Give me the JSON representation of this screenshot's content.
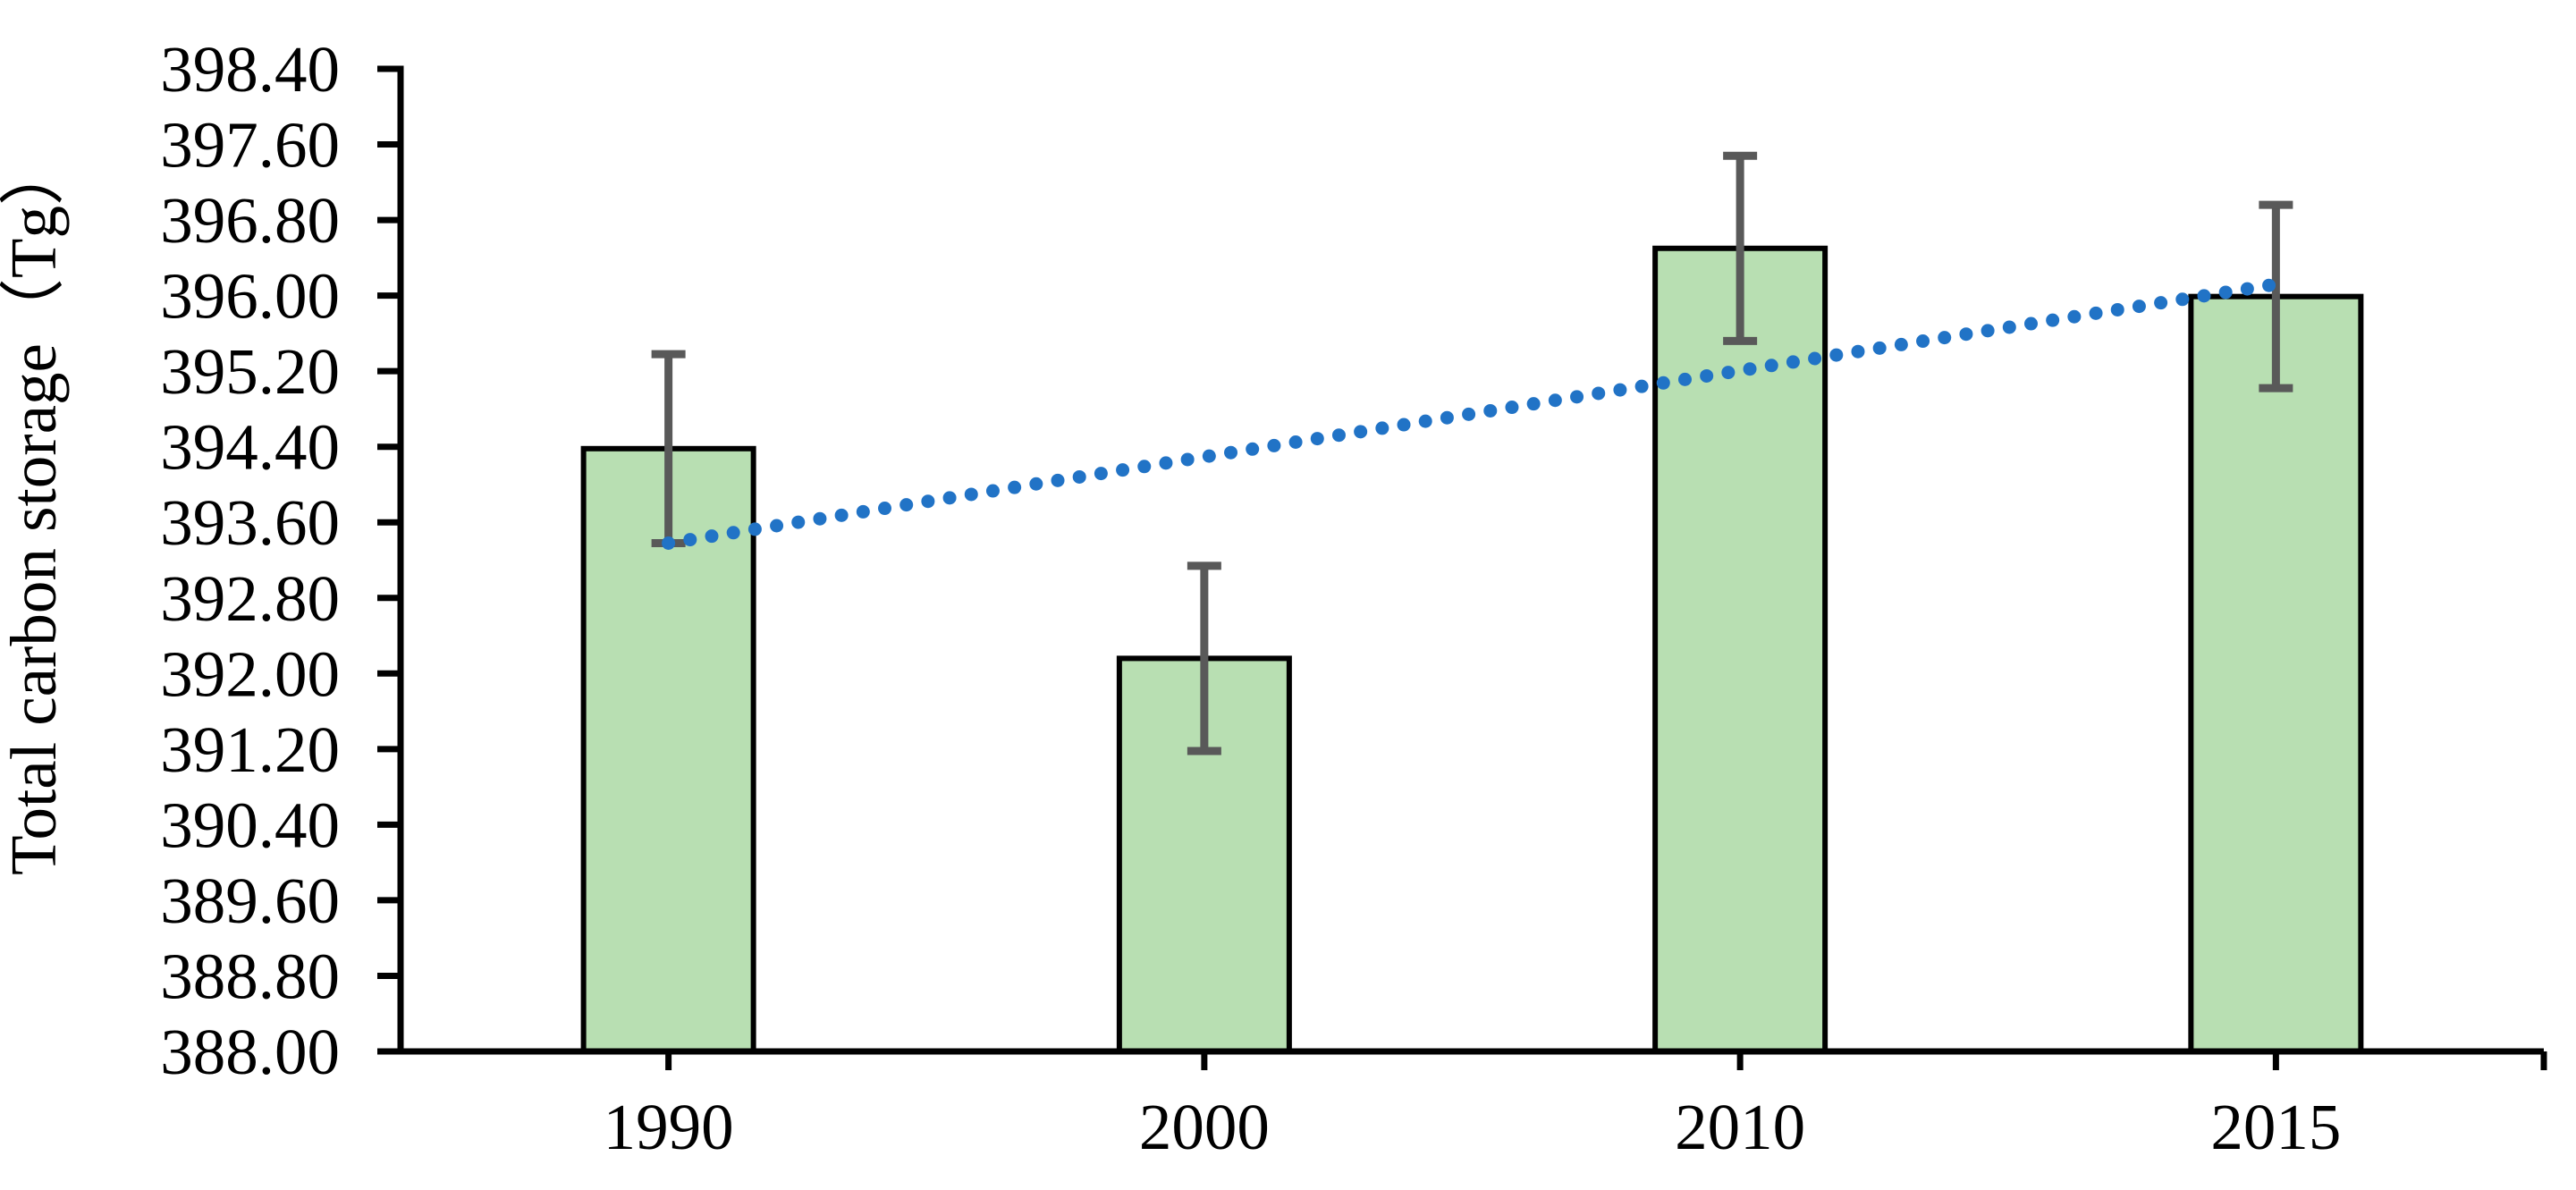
{
  "chart_data": {
    "type": "bar",
    "title": "",
    "xlabel": "",
    "ylabel": "Total carbon storage（Tg）",
    "categories": [
      "1990",
      "2000",
      "2010",
      "2015"
    ],
    "values": [
      394.38,
      392.16,
      396.5,
      395.99
    ],
    "error_bars": [
      1.0,
      0.98,
      0.98,
      0.97
    ],
    "y_axis": {
      "min": 388.0,
      "max": 398.4,
      "tick_step": 0.8,
      "tick_labels": [
        "398.40",
        "397.60",
        "396.80",
        "396.00",
        "395.20",
        "394.40",
        "393.60",
        "392.80",
        "392.00",
        "391.20",
        "390.40",
        "389.60",
        "388.80",
        "388.00"
      ]
    },
    "trendline": {
      "type": "linear",
      "style": "dotted",
      "start_value": 393.38,
      "end_value": 396.12
    },
    "legend": {
      "visible": false
    },
    "grid": false,
    "colors": {
      "bar_fill": "#B8DFB2",
      "bar_border": "#000000",
      "error_bar": "#595959",
      "trendline_dot": "#2173C6",
      "axis": "#000000",
      "text": "#000000",
      "background": "#FFFFFF"
    }
  }
}
